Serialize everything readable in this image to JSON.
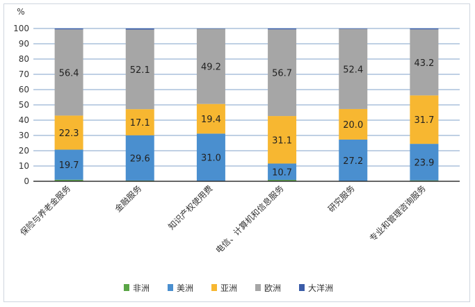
{
  "chart_data": {
    "type": "bar",
    "stacked": true,
    "ylabel": "%",
    "ylim": [
      0,
      100
    ],
    "yticks": [
      0,
      10,
      20,
      30,
      40,
      50,
      60,
      70,
      80,
      90,
      100
    ],
    "grid": true,
    "legend": "bottom",
    "categories": [
      "保险与养老金服务",
      "金融服务",
      "知识产权使用费",
      "电信、计算机和信息服务",
      "研究服务",
      "专业和管理咨询服务"
    ],
    "series": [
      {
        "name": "非洲",
        "color": "#5aa546",
        "values": [
          1.0,
          0.5,
          0.2,
          0.9,
          0.1,
          0.6
        ]
      },
      {
        "name": "美洲",
        "color": "#4a8fcf",
        "values": [
          19.7,
          29.6,
          31.0,
          10.7,
          27.2,
          23.9
        ]
      },
      {
        "name": "亚洲",
        "color": "#f7b731",
        "values": [
          22.3,
          17.1,
          19.4,
          31.1,
          20.0,
          31.7
        ]
      },
      {
        "name": "欧洲",
        "color": "#a6a6a6",
        "values": [
          56.4,
          52.1,
          49.2,
          56.7,
          52.4,
          43.2
        ]
      },
      {
        "name": "大洋洲",
        "color": "#3b5ca8",
        "values": [
          0.6,
          0.7,
          0.2,
          0.6,
          0.3,
          0.6
        ]
      }
    ],
    "data_labels": {
      "美洲": [
        "19.7",
        "29.6",
        "31.0",
        "10.7",
        "27.2",
        "23.9"
      ],
      "亚洲": [
        "22.3",
        "17.1",
        "19.4",
        "31.1",
        "20.0",
        "31.7"
      ],
      "欧洲": [
        "56.4",
        "52.1",
        "49.2",
        "56.7",
        "52.4",
        "43.2"
      ]
    }
  }
}
